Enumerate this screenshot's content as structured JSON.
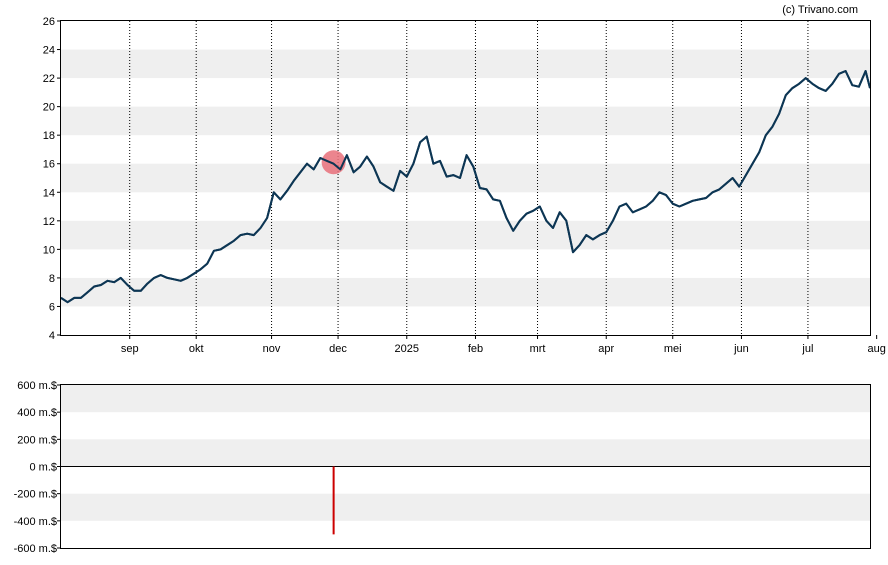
{
  "credit": "(c) Trivano.com",
  "chart_data": [
    {
      "type": "line",
      "title": "",
      "xlabel": "",
      "ylabel": "",
      "ylim": [
        4,
        26
      ],
      "y_ticks": [
        4,
        6,
        8,
        10,
        12,
        14,
        16,
        18,
        20,
        22,
        24,
        26
      ],
      "x_ticks": [
        "sep",
        "okt",
        "nov",
        "dec",
        "2025",
        "feb",
        "mrt",
        "apr",
        "mei",
        "jun",
        "jul",
        "aug"
      ],
      "x_tick_positions": [
        28,
        58,
        92,
        122,
        153,
        184,
        212,
        243,
        273,
        304,
        334,
        365
      ],
      "xlim": [
        -3,
        362
      ],
      "grid": "alternating horizontal bands, dotted vertical lines at month ticks",
      "line_color": "#0d3654",
      "series": [
        {
          "x": [
            -3,
            0,
            3,
            6,
            9,
            12,
            15,
            18,
            21,
            24,
            27,
            30,
            33,
            36,
            39,
            42,
            45,
            48,
            51,
            54,
            57,
            60,
            63,
            66,
            69,
            72,
            75,
            78,
            81,
            84,
            87,
            90,
            93,
            96,
            99,
            102,
            105,
            108,
            111,
            114,
            117,
            120,
            123,
            126,
            129,
            132,
            135,
            138,
            141,
            144,
            147,
            150,
            153,
            156,
            159,
            162,
            165,
            168,
            171,
            174,
            177,
            180,
            183,
            186,
            189,
            192,
            195,
            198,
            201,
            204,
            207,
            210,
            213,
            216,
            219,
            222,
            225,
            228,
            231,
            234,
            237,
            240,
            243,
            246,
            249,
            252,
            255,
            258,
            261,
            264,
            267,
            270,
            273,
            276,
            279,
            282,
            285,
            288,
            291,
            294,
            297,
            300,
            303,
            306,
            309,
            312,
            315,
            318,
            321,
            324,
            327,
            330,
            333,
            336,
            339,
            342,
            345,
            348,
            351,
            354,
            357,
            360,
            362
          ],
          "y": [
            6.6,
            6.3,
            6.6,
            6.6,
            7.0,
            7.4,
            7.5,
            7.8,
            7.7,
            8.0,
            7.5,
            7.1,
            7.1,
            7.6,
            8.0,
            8.2,
            8.0,
            7.9,
            7.8,
            8.0,
            8.3,
            8.6,
            9.0,
            9.9,
            10.0,
            10.3,
            10.6,
            11.0,
            11.1,
            11.0,
            11.5,
            12.2,
            14.0,
            13.5,
            14.1,
            14.8,
            15.4,
            16.0,
            15.6,
            16.4,
            16.2,
            16.0,
            15.6,
            16.6,
            15.4,
            15.8,
            16.5,
            15.8,
            14.7,
            14.4,
            14.1,
            15.5,
            15.1,
            16.0,
            17.5,
            17.9,
            16.0,
            16.2,
            15.1,
            15.2,
            15.0,
            16.6,
            15.8,
            14.3,
            14.2,
            13.5,
            13.4,
            12.2,
            11.3,
            12.0,
            12.5,
            12.7,
            13.0,
            12.0,
            11.5,
            12.6,
            12.0,
            9.8,
            10.3,
            11.0,
            10.7,
            11.0,
            11.2,
            12.0,
            13.0,
            13.2,
            12.6,
            12.8,
            13.0,
            13.4,
            14.0,
            13.8,
            13.2,
            13.0,
            13.2,
            13.4,
            13.5,
            13.6,
            14.0,
            14.2,
            14.6,
            15.0,
            14.4,
            15.2,
            16.0,
            16.8,
            18.0,
            18.6,
            19.5,
            20.8,
            21.3,
            21.6,
            22.0,
            21.6,
            21.3,
            21.1,
            21.6,
            22.3,
            22.5,
            21.5,
            21.4,
            22.5,
            21.3
          ]
        }
      ],
      "marker": {
        "x": 120,
        "y": 16.1,
        "color": "#e8707a"
      }
    },
    {
      "type": "bar",
      "title": "",
      "xlabel": "",
      "ylabel": "",
      "ylim": [
        -600,
        600
      ],
      "y_tick_values": [
        -600,
        -400,
        -200,
        0,
        200,
        400,
        600
      ],
      "y_tick_labels": [
        "-600 m.$",
        "-400 m.$",
        "-200 m.$",
        "0 m.$",
        "200 m.$",
        "400 m.$",
        "600 m.$"
      ],
      "bars": [
        {
          "x": 120,
          "value": -500,
          "color": "#cc0000"
        }
      ],
      "grid": "alternating horizontal bands"
    }
  ]
}
